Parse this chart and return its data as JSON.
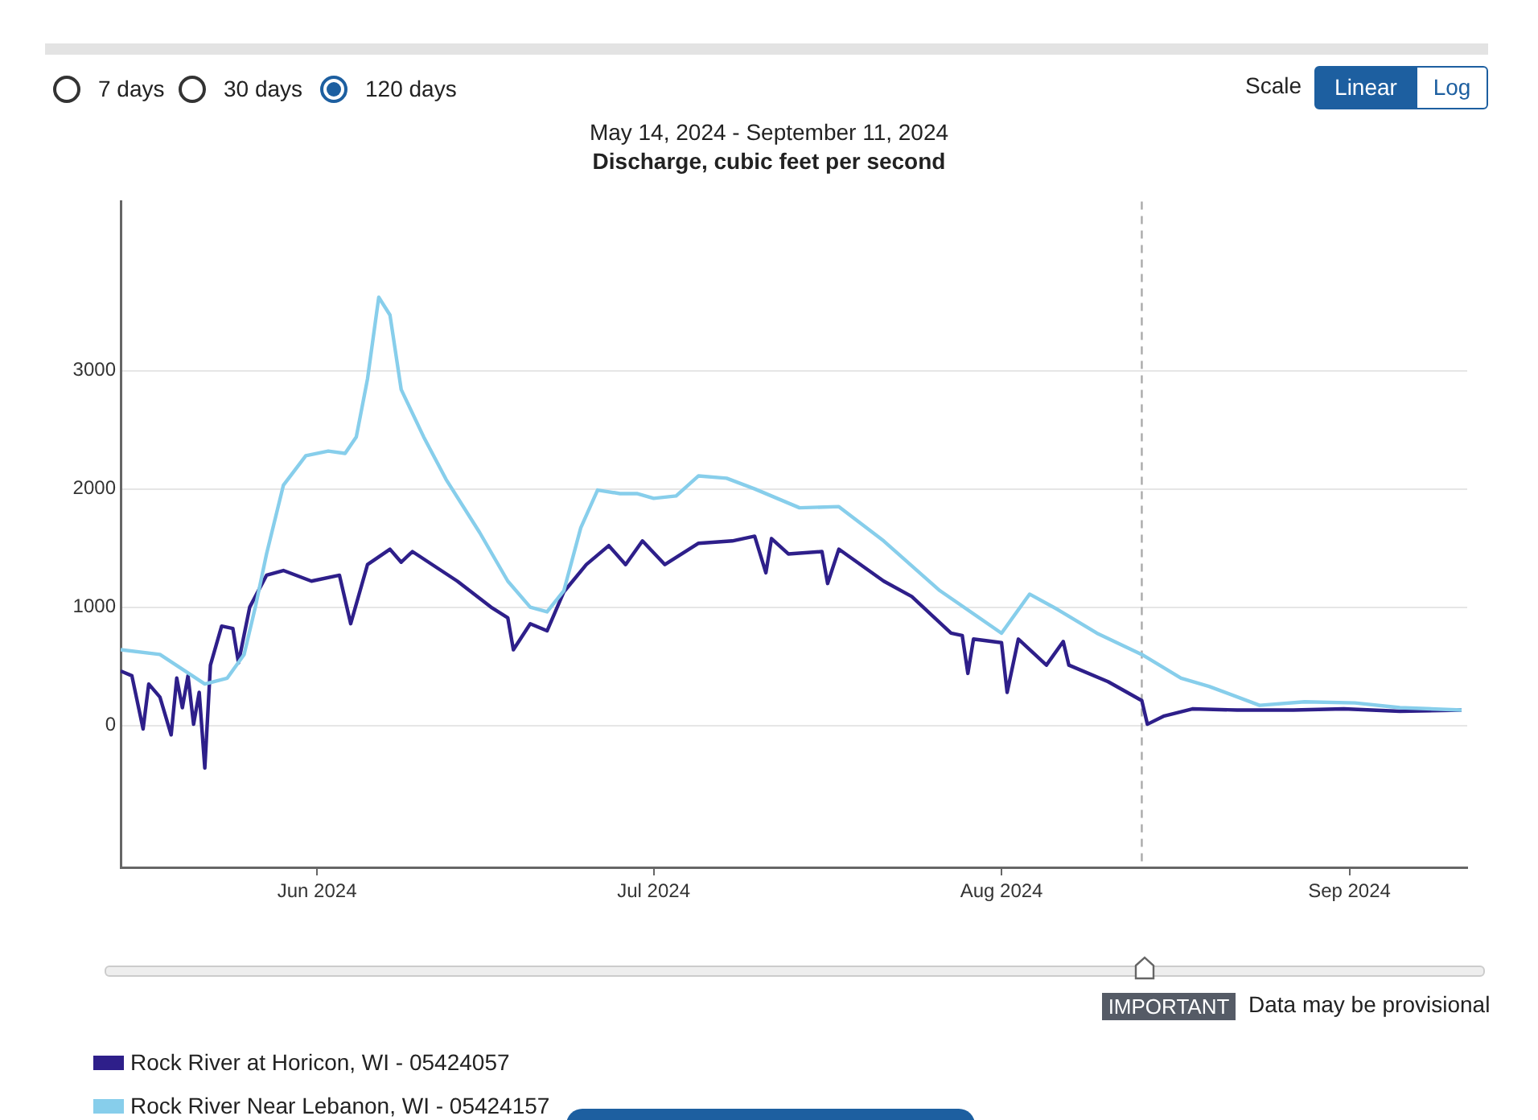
{
  "chart_data": {
    "type": "line",
    "title": "Discharge, cubic feet per second",
    "subtitle": "May 14, 2024 - September 11, 2024",
    "annotations": [
      "7 days",
      "30 days",
      "120 days",
      "Scale",
      "Linear",
      "Log",
      "IMPORTANT",
      "Data may be provisional"
    ],
    "xlim": [
      "2024-05-14T12:00",
      "2024-09-11T12:00"
    ],
    "xticks": [
      {
        "value": "2024-06-01",
        "label": "Jun 2024"
      },
      {
        "value": "2024-07-01",
        "label": "Jul 2024"
      },
      {
        "value": "2024-08-01",
        "label": "Aug 2024"
      },
      {
        "value": "2024-09-01",
        "label": "Sep 2024"
      }
    ],
    "ylim": [
      -1200,
      4430
    ],
    "yticks": [
      0,
      1000,
      2000,
      3000
    ],
    "grid": "y",
    "legend": "bottom",
    "marker": "none",
    "line_style": "solid",
    "ref_lines": [
      {
        "axis": "x",
        "value": "2024-08-13T12:00",
        "color": "#aaaaaa",
        "line_style": "dashed"
      }
    ],
    "series": [
      {
        "name": "Rock River at Horicon, WI - 05424057",
        "color": "#2e1f8a",
        "x": [
          "2024-05-14T12:00",
          "2024-05-15T12:00",
          "2024-05-16T12:00",
          "2024-05-17",
          "2024-05-18",
          "2024-05-19",
          "2024-05-19T12:00",
          "2024-05-20",
          "2024-05-20T12:00",
          "2024-05-21",
          "2024-05-21T12:00",
          "2024-05-22",
          "2024-05-22T12:00",
          "2024-05-23T12:00",
          "2024-05-24T12:00",
          "2024-05-25",
          "2024-05-26",
          "2024-05-27T12:00",
          "2024-05-29",
          "2024-05-31T12:00",
          "2024-06-03",
          "2024-06-04",
          "2024-06-05T12:00",
          "2024-06-07T12:00",
          "2024-06-08T12:00",
          "2024-06-09T12:00",
          "2024-06-13T12:00",
          "2024-06-16T12:00",
          "2024-06-18",
          "2024-06-18T12:00",
          "2024-06-20",
          "2024-06-21T12:00",
          "2024-06-23",
          "2024-06-25",
          "2024-06-27",
          "2024-06-28T12:00",
          "2024-06-30",
          "2024-07-02",
          "2024-07-05",
          "2024-07-08",
          "2024-07-10",
          "2024-07-11",
          "2024-07-11T12:00",
          "2024-07-13",
          "2024-07-16",
          "2024-07-16T12:00",
          "2024-07-17T12:00",
          "2024-07-21T12:00",
          "2024-07-24",
          "2024-07-27T12:00",
          "2024-07-28T12:00",
          "2024-07-29",
          "2024-07-29T12:00",
          "2024-08-01",
          "2024-08-01T12:00",
          "2024-08-02T12:00",
          "2024-08-05",
          "2024-08-06T12:00",
          "2024-08-07",
          "2024-08-10T12:00",
          "2024-08-13T12:00",
          "2024-08-14",
          "2024-08-15T12:00",
          "2024-08-18",
          "2024-08-22",
          "2024-08-27",
          "2024-08-31T12:00",
          "2024-09-05T12:00",
          "2024-09-11"
        ],
        "values": [
          460,
          420,
          -30,
          350,
          240,
          -80,
          400,
          150,
          420,
          10,
          280,
          -360,
          510,
          840,
          820,
          530,
          1000,
          1270,
          1310,
          1220,
          1270,
          860,
          1360,
          1490,
          1380,
          1470,
          1220,
          1000,
          910,
          640,
          860,
          800,
          1130,
          1360,
          1520,
          1360,
          1560,
          1360,
          1540,
          1560,
          1600,
          1290,
          1580,
          1450,
          1470,
          1200,
          1490,
          1220,
          1090,
          780,
          760,
          440,
          730,
          700,
          280,
          730,
          510,
          710,
          510,
          370,
          210,
          10,
          80,
          140,
          130,
          130,
          140,
          120,
          130
        ]
      },
      {
        "name": "Rock River Near Lebanon, WI - 05424157",
        "color": "#87ceeb",
        "x": [
          "2024-05-14T12:00",
          "2024-05-18",
          "2024-05-22",
          "2024-05-24",
          "2024-05-25T12:00",
          "2024-05-26T12:00",
          "2024-05-27T12:00",
          "2024-05-29",
          "2024-05-31",
          "2024-06-02",
          "2024-06-03T12:00",
          "2024-06-04T12:00",
          "2024-06-05T12:00",
          "2024-06-06T12:00",
          "2024-06-07T12:00",
          "2024-06-08T12:00",
          "2024-06-10T12:00",
          "2024-06-12T12:00",
          "2024-06-15T12:00",
          "2024-06-18",
          "2024-06-20",
          "2024-06-21T12:00",
          "2024-06-23",
          "2024-06-24T12:00",
          "2024-06-26",
          "2024-06-28",
          "2024-06-29T12:00",
          "2024-07-01",
          "2024-07-03",
          "2024-07-05",
          "2024-07-07T12:00",
          "2024-07-10",
          "2024-07-14",
          "2024-07-17T12:00",
          "2024-07-21T12:00",
          "2024-07-26T12:00",
          "2024-08-01",
          "2024-08-03T12:00",
          "2024-08-06",
          "2024-08-09T12:00",
          "2024-08-13T12:00",
          "2024-08-17",
          "2024-08-19T12:00",
          "2024-08-24",
          "2024-08-28",
          "2024-09-01T12:00",
          "2024-09-05T12:00",
          "2024-09-11"
        ],
        "values": [
          640,
          600,
          350,
          400,
          600,
          1000,
          1450,
          2030,
          2280,
          2320,
          2300,
          2440,
          2930,
          3620,
          3470,
          2840,
          2440,
          2080,
          1630,
          1220,
          1000,
          960,
          1140,
          1670,
          1990,
          1960,
          1960,
          1920,
          1940,
          2110,
          2090,
          2000,
          1840,
          1850,
          1560,
          1140,
          780,
          1110,
          980,
          780,
          600,
          400,
          330,
          170,
          200,
          190,
          150,
          130
        ]
      }
    ]
  }
}
